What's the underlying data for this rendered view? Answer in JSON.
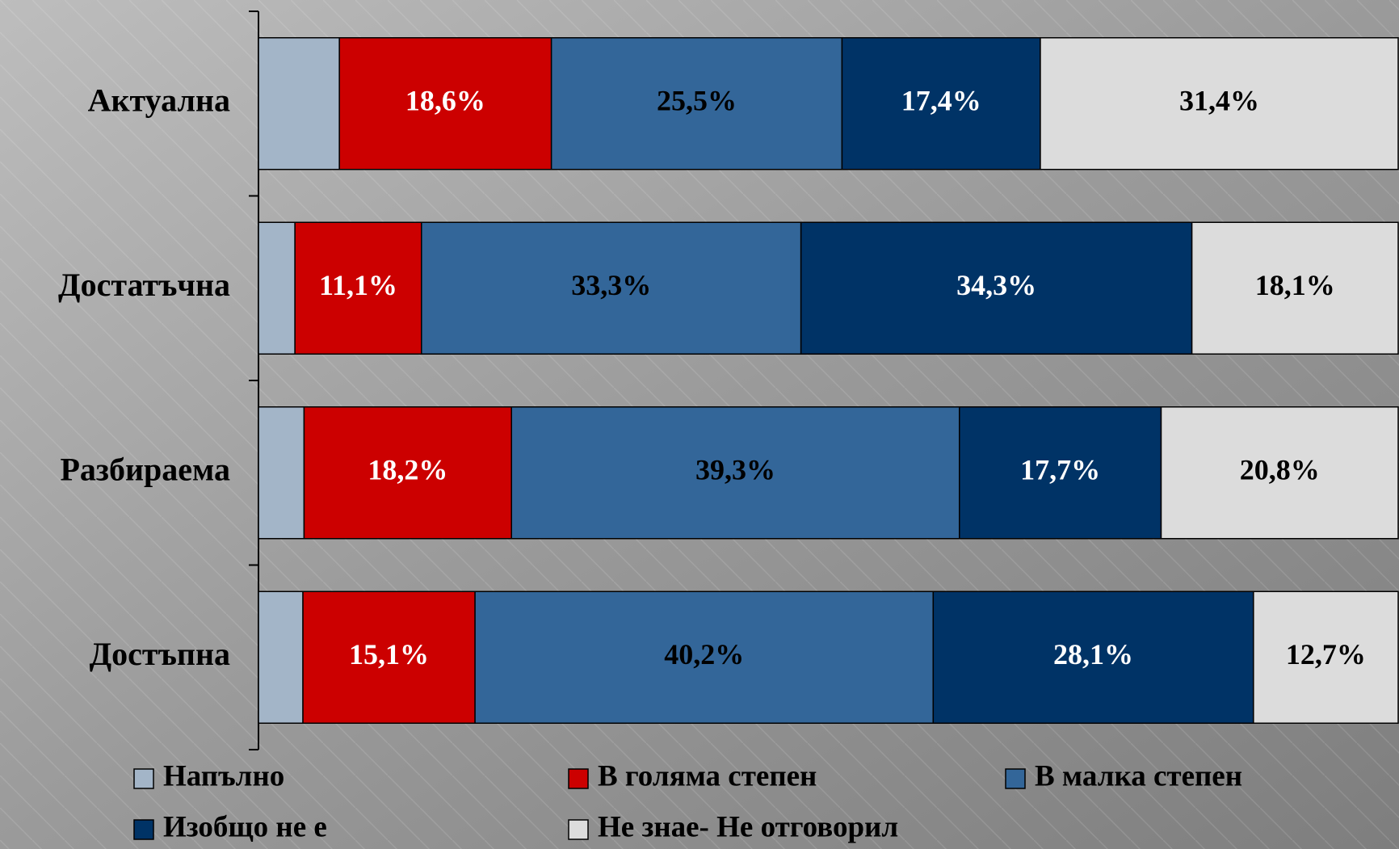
{
  "chart_data": {
    "type": "stacked_barh",
    "categories": [
      "Актуална",
      "Достатъчна",
      "Разбираема",
      "Достъпна"
    ],
    "series": [
      {
        "name": "Напълно",
        "color": "#a3b5c8",
        "values": [
          7.1,
          3.2,
          4.0,
          3.9
        ]
      },
      {
        "name": "В голяма степен",
        "color": "#cc0000",
        "values": [
          18.6,
          11.1,
          18.2,
          15.1
        ],
        "value_labels": [
          "18,6%",
          "11,1%",
          "18,2%",
          "15,1%"
        ]
      },
      {
        "name": "В малка степен",
        "color": "#336699",
        "values": [
          25.5,
          33.3,
          39.3,
          40.2
        ],
        "value_labels": [
          "25,5%",
          "33,3%",
          "39,3%",
          "40,2%"
        ]
      },
      {
        "name": "Изобщо не е",
        "color": "#003366",
        "values": [
          17.4,
          34.3,
          17.7,
          28.1
        ],
        "value_labels": [
          "17,4%",
          "34,3%",
          "17,7%",
          "28,1%"
        ]
      },
      {
        "name": "Не знае- Не отговорил",
        "color": "#dcdcdc",
        "values": [
          31.4,
          18.1,
          20.8,
          12.7
        ],
        "value_labels": [
          "31,4%",
          "18,1%",
          "20,8%",
          "12,7%"
        ]
      }
    ],
    "xlim": [
      0,
      100
    ],
    "legend": "bottom"
  }
}
